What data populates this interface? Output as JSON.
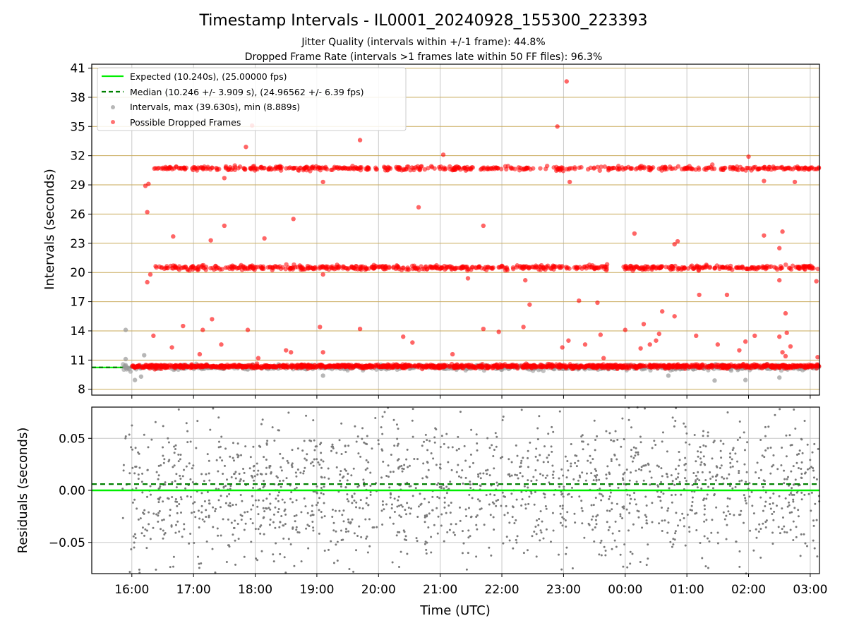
{
  "figure": {
    "title": "Timestamp Intervals - IL0001_20240928_155300_223393",
    "subtitle_1": "Jitter Quality (intervals within +/-1 frame): 44.8%",
    "subtitle_2": "Dropped Frame Rate (intervals >1 frames late within 50 FF files): 96.3%"
  },
  "colors": {
    "expected": "#00ee00",
    "median": "#008000",
    "intervals": "#999999",
    "dropped": "#ff0000",
    "residuals": "#7a7a7a",
    "hgrid_top": "#c8aa5a",
    "vgrid": "#c8c8c8"
  },
  "chart_data": [
    {
      "type": "scatter",
      "panel": "intervals",
      "title": "",
      "xlabel": "",
      "ylabel": "Intervals (seconds)",
      "x_unit": "hours UTC (16 = 16:00, 24 = 00:00 next day)",
      "xlim": [
        15.35,
        27.15
      ],
      "ylim": [
        7.4,
        41.4
      ],
      "yticks": [
        8,
        11,
        14,
        17,
        20,
        23,
        26,
        29,
        32,
        35,
        38,
        41
      ],
      "grid": "horizontal and vertical",
      "legend_position": "top-left",
      "legend": [
        "Expected (10.240s), (25.00000 fps)",
        "Median (10.246 +/- 3.909 s), (24.96562 +/- 6.39 fps)",
        "Intervals, max (39.630s), min (8.889s)",
        "Possible Dropped Frames"
      ],
      "expected_interval": 10.24,
      "median_interval": 10.246,
      "reference_line_x_range": [
        15.35,
        16.05
      ],
      "interval_range": {
        "max": 39.63,
        "min": 8.889
      },
      "clusters": [
        {
          "name": "Intervals",
          "x_range": [
            15.85,
            27.15
          ],
          "y_center": 10.24,
          "class": "normal"
        },
        {
          "name": "Possible Dropped Frames",
          "x_range": [
            16.0,
            27.15
          ],
          "y_center": 10.35,
          "class": "dropped"
        },
        {
          "name": "Possible Dropped Frames",
          "x_range": [
            16.35,
            27.15
          ],
          "y_center": 20.5,
          "class": "dropped"
        },
        {
          "name": "Possible Dropped Frames",
          "x_range": [
            16.35,
            27.15
          ],
          "y_center": 30.7,
          "class": "dropped"
        }
      ],
      "notable_points": [
        {
          "x": 23.05,
          "y": 39.63
        },
        {
          "x": 22.9,
          "y": 35.0
        },
        {
          "x": 17.85,
          "y": 32.9
        },
        {
          "x": 17.95,
          "y": 35.1
        },
        {
          "x": 19.7,
          "y": 33.6
        },
        {
          "x": 21.05,
          "y": 32.1
        },
        {
          "x": 26.0,
          "y": 31.9
        },
        {
          "x": 16.22,
          "y": 28.9
        },
        {
          "x": 16.27,
          "y": 29.1
        },
        {
          "x": 16.25,
          "y": 26.2
        },
        {
          "x": 20.65,
          "y": 26.7
        },
        {
          "x": 18.62,
          "y": 25.5
        },
        {
          "x": 21.7,
          "y": 24.8
        },
        {
          "x": 17.5,
          "y": 24.8
        },
        {
          "x": 26.55,
          "y": 24.2
        },
        {
          "x": 24.15,
          "y": 24.0
        },
        {
          "x": 16.67,
          "y": 23.7
        },
        {
          "x": 18.15,
          "y": 23.5
        },
        {
          "x": 26.25,
          "y": 23.8
        },
        {
          "x": 17.28,
          "y": 23.3
        },
        {
          "x": 24.85,
          "y": 23.2
        },
        {
          "x": 24.8,
          "y": 22.9
        },
        {
          "x": 26.5,
          "y": 22.5
        },
        {
          "x": 16.25,
          "y": 19.0
        },
        {
          "x": 16.3,
          "y": 19.8
        },
        {
          "x": 25.2,
          "y": 17.7
        },
        {
          "x": 25.65,
          "y": 17.7
        },
        {
          "x": 23.25,
          "y": 17.1
        },
        {
          "x": 23.55,
          "y": 16.9
        },
        {
          "x": 22.45,
          "y": 16.7
        },
        {
          "x": 26.6,
          "y": 15.8
        },
        {
          "x": 17.3,
          "y": 15.2
        },
        {
          "x": 24.6,
          "y": 16.0
        },
        {
          "x": 24.8,
          "y": 15.5
        },
        {
          "x": 16.83,
          "y": 14.5
        },
        {
          "x": 19.05,
          "y": 14.4
        },
        {
          "x": 19.7,
          "y": 14.2
        },
        {
          "x": 21.7,
          "y": 14.2
        },
        {
          "x": 21.95,
          "y": 13.9
        },
        {
          "x": 17.88,
          "y": 14.1
        },
        {
          "x": 22.35,
          "y": 14.4
        },
        {
          "x": 24.3,
          "y": 14.7
        },
        {
          "x": 24.0,
          "y": 14.1
        },
        {
          "x": 16.35,
          "y": 13.5
        },
        {
          "x": 16.65,
          "y": 12.3
        },
        {
          "x": 17.1,
          "y": 11.6
        },
        {
          "x": 17.15,
          "y": 14.1
        },
        {
          "x": 17.45,
          "y": 12.6
        },
        {
          "x": 18.05,
          "y": 11.2
        },
        {
          "x": 18.5,
          "y": 12.0
        },
        {
          "x": 18.58,
          "y": 11.8
        },
        {
          "x": 19.1,
          "y": 11.8
        },
        {
          "x": 20.4,
          "y": 13.4
        },
        {
          "x": 20.55,
          "y": 12.8
        },
        {
          "x": 21.2,
          "y": 11.6
        },
        {
          "x": 22.98,
          "y": 12.3
        },
        {
          "x": 23.08,
          "y": 13.0
        },
        {
          "x": 23.35,
          "y": 12.6
        },
        {
          "x": 23.6,
          "y": 13.6
        },
        {
          "x": 23.65,
          "y": 11.2
        },
        {
          "x": 24.25,
          "y": 12.2
        },
        {
          "x": 24.4,
          "y": 12.6
        },
        {
          "x": 24.5,
          "y": 13.0
        },
        {
          "x": 24.55,
          "y": 13.7
        },
        {
          "x": 25.15,
          "y": 13.5
        },
        {
          "x": 25.5,
          "y": 12.6
        },
        {
          "x": 25.85,
          "y": 12.0
        },
        {
          "x": 25.95,
          "y": 12.9
        },
        {
          "x": 26.1,
          "y": 13.5
        },
        {
          "x": 26.5,
          "y": 13.4
        },
        {
          "x": 26.62,
          "y": 13.8
        },
        {
          "x": 26.68,
          "y": 12.4
        },
        {
          "x": 26.55,
          "y": 11.8
        },
        {
          "x": 26.6,
          "y": 11.4
        },
        {
          "x": 27.12,
          "y": 11.3
        },
        {
          "x": 27.1,
          "y": 19.1
        },
        {
          "x": 26.75,
          "y": 29.3
        },
        {
          "x": 26.25,
          "y": 29.4
        },
        {
          "x": 23.1,
          "y": 29.3
        },
        {
          "x": 19.1,
          "y": 29.3
        },
        {
          "x": 17.5,
          "y": 29.7
        },
        {
          "x": 22.38,
          "y": 19.2
        },
        {
          "x": 21.45,
          "y": 19.4
        },
        {
          "x": 19.1,
          "y": 19.8
        },
        {
          "x": 26.5,
          "y": 19.2
        }
      ],
      "normal_outliers": [
        {
          "x": 15.9,
          "y": 14.1
        },
        {
          "x": 15.9,
          "y": 11.1
        },
        {
          "x": 16.05,
          "y": 8.95
        },
        {
          "x": 16.2,
          "y": 11.5
        },
        {
          "x": 16.15,
          "y": 9.3
        },
        {
          "x": 25.45,
          "y": 8.9
        },
        {
          "x": 25.95,
          "y": 8.95
        },
        {
          "x": 19.1,
          "y": 9.4
        },
        {
          "x": 24.7,
          "y": 9.4
        },
        {
          "x": 26.5,
          "y": 9.2
        }
      ]
    },
    {
      "type": "scatter",
      "panel": "residuals",
      "title": "",
      "xlabel": "Time (UTC)",
      "ylabel": "Residuals (seconds)",
      "x_unit": "hours UTC (16 = 16:00, 24 = 00:00 next day)",
      "xlim": [
        15.35,
        27.15
      ],
      "ylim": [
        -0.08,
        0.08
      ],
      "yticks": [
        -0.05,
        0.0,
        0.05
      ],
      "ytick_labels": [
        "−0.05",
        "0.00",
        "0.05"
      ],
      "xticks": [
        16,
        17,
        18,
        19,
        20,
        21,
        22,
        23,
        24,
        25,
        26,
        27
      ],
      "xtick_labels": [
        "16:00",
        "17:00",
        "18:00",
        "19:00",
        "20:00",
        "21:00",
        "22:00",
        "23:00",
        "00:00",
        "01:00",
        "02:00",
        "03:00"
      ],
      "grid": "horizontal and vertical",
      "expected_residual": 0.0,
      "median_residual": 0.006,
      "point_x_range": [
        15.85,
        27.15
      ],
      "point_y_range": [
        -0.08,
        0.08
      ]
    }
  ]
}
